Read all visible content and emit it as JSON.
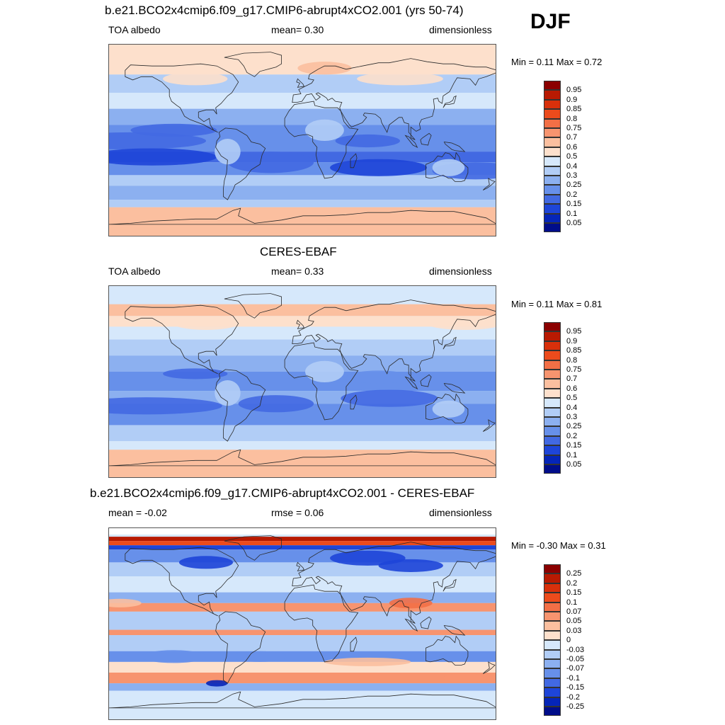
{
  "season": "DJF",
  "panels": [
    {
      "id": "model",
      "title": "b.e21.BCO2x4cmip6.f09_g17.CMIP6-abrupt4xCO2.001 (yrs 50-74)",
      "left": "TOA albedo",
      "center": "mean=   0.30",
      "right": "dimensionless",
      "minmax": "Min =   0.11 Max =   0.72",
      "colorbar": [
        "0.95",
        "0.9",
        "0.85",
        "0.8",
        "0.75",
        "0.7",
        "0.6",
        "0.5",
        "0.4",
        "0.3",
        "0.25",
        "0.2",
        "0.15",
        "0.1",
        "0.05"
      ]
    },
    {
      "id": "obs",
      "title": "CERES-EBAF",
      "left": "TOA albedo",
      "center": "mean=   0.33",
      "right": "dimensionless",
      "minmax": "Min =   0.11 Max =   0.81",
      "colorbar": [
        "0.95",
        "0.9",
        "0.85",
        "0.8",
        "0.75",
        "0.7",
        "0.6",
        "0.5",
        "0.4",
        "0.3",
        "0.25",
        "0.2",
        "0.15",
        "0.1",
        "0.05"
      ]
    },
    {
      "id": "diff",
      "title": "b.e21.BCO2x4cmip6.f09_g17.CMIP6-abrupt4xCO2.001 - CERES-EBAF",
      "left": "mean =  -0.02",
      "center": "rmse =   0.06",
      "right": "dimensionless",
      "minmax": "Min =  -0.30 Max =   0.31",
      "colorbar": [
        "0.25",
        "0.2",
        "0.15",
        "0.1",
        "0.07",
        "0.05",
        "0.03",
        "0",
        "-0.03",
        "-0.05",
        "-0.07",
        "-0.1",
        "-0.15",
        "-0.2",
        "-0.25"
      ]
    }
  ],
  "chart_data": [
    {
      "type": "heatmap",
      "title": "b.e21.BCO2x4cmip6.f09_g17.CMIP6-abrupt4xCO2.001 (yrs 50-74)",
      "variable": "TOA albedo",
      "units": "dimensionless",
      "season": "DJF",
      "mean": 0.3,
      "min": 0.11,
      "max": 0.72,
      "levels": [
        0.05,
        0.1,
        0.15,
        0.2,
        0.25,
        0.3,
        0.4,
        0.5,
        0.6,
        0.7,
        0.75,
        0.8,
        0.85,
        0.9,
        0.95
      ],
      "xlim": [
        -180,
        180
      ],
      "ylim": [
        -90,
        90
      ]
    },
    {
      "type": "heatmap",
      "title": "CERES-EBAF",
      "variable": "TOA albedo",
      "units": "dimensionless",
      "season": "DJF",
      "mean": 0.33,
      "min": 0.11,
      "max": 0.81,
      "levels": [
        0.05,
        0.1,
        0.15,
        0.2,
        0.25,
        0.3,
        0.4,
        0.5,
        0.6,
        0.7,
        0.75,
        0.8,
        0.85,
        0.9,
        0.95
      ],
      "xlim": [
        -180,
        180
      ],
      "ylim": [
        -90,
        90
      ]
    },
    {
      "type": "heatmap",
      "title": "b.e21.BCO2x4cmip6.f09_g17.CMIP6-abrupt4xCO2.001 - CERES-EBAF",
      "units": "dimensionless",
      "season": "DJF",
      "mean": -0.02,
      "rmse": 0.06,
      "min": -0.3,
      "max": 0.31,
      "levels": [
        -0.25,
        -0.2,
        -0.15,
        -0.1,
        -0.07,
        -0.05,
        -0.03,
        0,
        0.03,
        0.05,
        0.07,
        0.1,
        0.15,
        0.2,
        0.25
      ],
      "xlim": [
        -180,
        180
      ],
      "ylim": [
        -90,
        90
      ]
    }
  ],
  "colors": {
    "palette_16": [
      "#8b0000",
      "#b81a02",
      "#d8300b",
      "#ec4b1c",
      "#f26f46",
      "#f7946f",
      "#fbbf9f",
      "#fde0cc",
      "#d6e8fb",
      "#b1cdf6",
      "#8cb0f0",
      "#6790ea",
      "#4269e2",
      "#1e45d8",
      "#0525b8",
      "#000d8a"
    ],
    "land_outline": "#2b2b2b"
  }
}
